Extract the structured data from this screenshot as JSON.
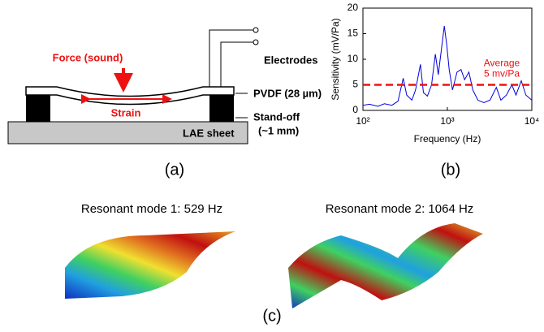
{
  "panel_a": {
    "force": "Force (sound)",
    "strain": "Strain",
    "electrodes": "Electrodes",
    "pvdf": "PVDF (28 µm)",
    "standoff": "Stand-off",
    "standoff_size": "(~1 mm)",
    "sheet": "LAE sheet"
  },
  "chart_data": {
    "type": "line",
    "xlabel": "Frequency (Hz)",
    "ylabel": "Sensitivity (mV/Pa)",
    "xscale": "log",
    "xlim": [
      100,
      10000
    ],
    "xticks": [
      {
        "value": 100,
        "label": "10²"
      },
      {
        "value": 1000,
        "label": "10³"
      },
      {
        "value": 10000,
        "label": "10⁴"
      }
    ],
    "ylim": [
      0,
      20
    ],
    "yticks": [
      0,
      5,
      10,
      15,
      20
    ],
    "x": [
      100,
      120,
      150,
      180,
      220,
      260,
      300,
      330,
      380,
      420,
      480,
      520,
      580,
      650,
      720,
      780,
      850,
      920,
      980,
      1050,
      1150,
      1300,
      1450,
      1600,
      1800,
      2000,
      2300,
      2700,
      3200,
      3800,
      4300,
      5000,
      5800,
      6500,
      7500,
      8500,
      10000
    ],
    "series": [
      {
        "color": "#0000dd",
        "values": [
          1,
          1.2,
          0.8,
          1.3,
          1.0,
          1.8,
          6.3,
          3,
          2,
          4,
          9,
          3.5,
          2.8,
          5,
          11,
          7,
          12,
          16.5,
          13,
          8,
          4,
          7.5,
          8,
          6,
          7.5,
          4,
          2,
          1.5,
          2,
          4.5,
          2,
          3,
          5,
          3,
          5.8,
          3,
          2
        ]
      }
    ],
    "reference_line": {
      "value": 5,
      "color": "#ee1111",
      "label": [
        "Average",
        "5 mv/Pa"
      ]
    }
  },
  "panel_c": {
    "mode1": "Resonant mode 1: 529 Hz",
    "mode2": "Resonant mode 2: 1064 Hz"
  },
  "captions": {
    "a": "(a)",
    "b": "(b)",
    "c": "(c)"
  }
}
